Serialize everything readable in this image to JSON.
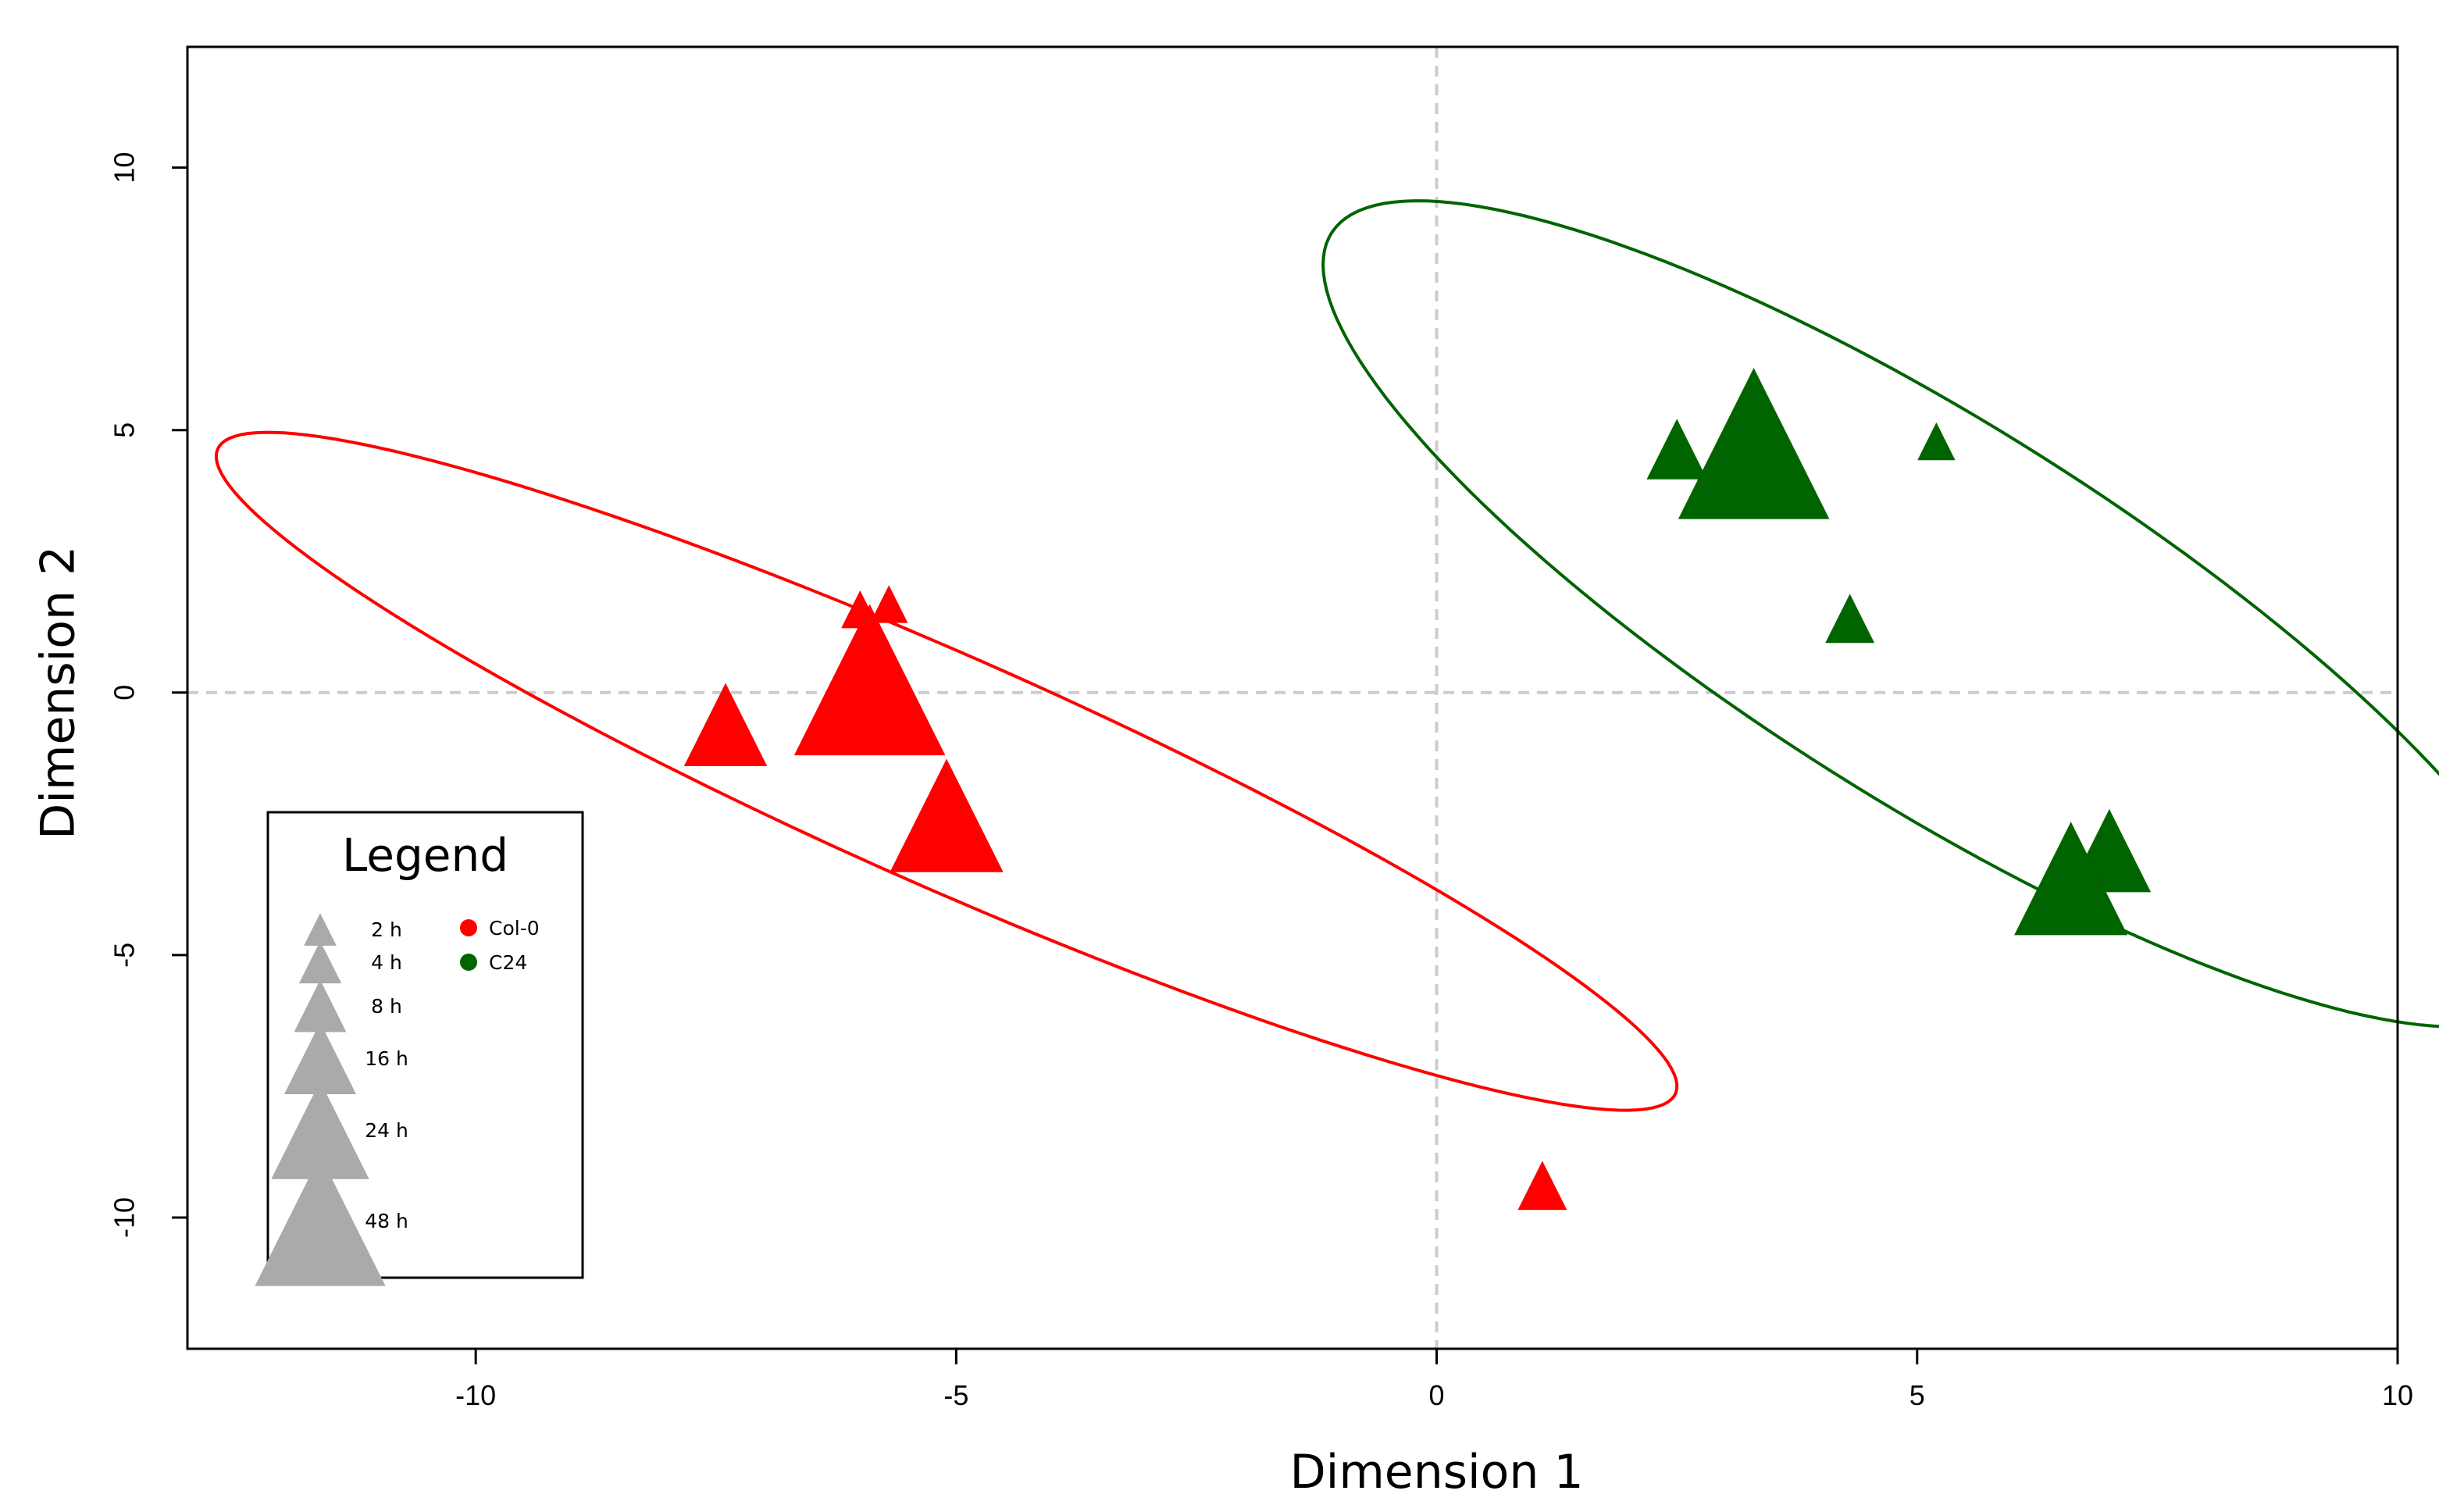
{
  "chart_data": {
    "type": "scatter",
    "title": "",
    "xlabel": "Dimension 1",
    "ylabel": "Dimension 2",
    "xlim": [
      -13,
      10
    ],
    "ylim": [
      -12.5,
      12.3
    ],
    "xticks": [
      -10,
      -5,
      0,
      5,
      10
    ],
    "yticks": [
      -10,
      -5,
      0,
      5,
      10
    ],
    "reference_lines": {
      "x": 0,
      "y": 0,
      "style": "dashed"
    },
    "series": [
      {
        "name": "Col-0",
        "color": "#ff0000",
        "points": [
          {
            "x": -6.0,
            "y": 1.5,
            "time": "2 h"
          },
          {
            "x": -5.7,
            "y": 1.6,
            "time": "2 h"
          },
          {
            "x": -7.4,
            "y": -0.8,
            "time": "16 h"
          },
          {
            "x": -5.1,
            "y": -2.6,
            "time": "24 h"
          },
          {
            "x": -5.9,
            "y": -0.1,
            "time": "48 h"
          },
          {
            "x": 1.1,
            "y": -9.5,
            "time": "4 h"
          }
        ],
        "ellipse": {
          "center": [
            -5.1,
            -1.5
          ],
          "semi_major": 9.8,
          "semi_minor": 1.85,
          "angle_deg": -40
        }
      },
      {
        "name": "C24",
        "color": "#006400",
        "points": [
          {
            "x": 5.2,
            "y": 4.7,
            "time": "2 h"
          },
          {
            "x": 2.5,
            "y": 4.5,
            "time": "8 h"
          },
          {
            "x": 4.3,
            "y": 1.3,
            "time": "4 h"
          },
          {
            "x": 3.3,
            "y": 4.4,
            "time": "48 h"
          },
          {
            "x": 7.0,
            "y": -3.2,
            "time": "16 h"
          },
          {
            "x": 6.6,
            "y": -3.8,
            "time": "24 h"
          }
        ],
        "ellipse": {
          "center": [
            5.2,
            1.5
          ],
          "semi_major": 9.75,
          "semi_minor": 2.75,
          "angle_deg": -52
        }
      }
    ],
    "legend": {
      "title": "Legend",
      "position": "bottom-left",
      "sizes": [
        {
          "label": "2 h",
          "scale": 1.0
        },
        {
          "label": "4 h",
          "scale": 1.3
        },
        {
          "label": "8 h",
          "scale": 1.6
        },
        {
          "label": "16 h",
          "scale": 2.2
        },
        {
          "label": "24 h",
          "scale": 3.0
        },
        {
          "label": "48 h",
          "scale": 4.0
        }
      ],
      "groups": [
        {
          "label": "Col-0",
          "color": "#ff0000"
        },
        {
          "label": "C24",
          "color": "#006400"
        }
      ],
      "size_color": "#aaaaaa"
    }
  }
}
